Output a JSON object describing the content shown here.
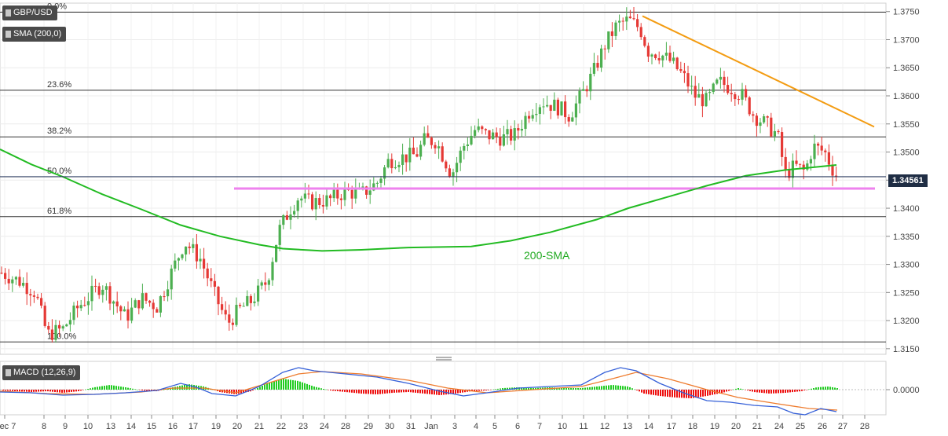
{
  "symbol": "GBP/USD",
  "indicator_label": "SMA (200,0)",
  "macd_label": "MACD (12,26,9)",
  "last_price": "1.34561",
  "sma_annotation": "200-SMA",
  "colors": {
    "up": "#4caf50",
    "down": "#e53935",
    "sma": "#22bb22",
    "trendline": "#f39c12",
    "support": "#ee82ee",
    "macd": "#3560d8",
    "signal": "#ee7b2d",
    "price_tag_bg": "#1f2d44"
  },
  "chart_data": {
    "type": "candlestick",
    "y_range": [
      1.314,
      1.3765
    ],
    "y_ticks": [
      "1.3750",
      "1.3700",
      "1.3650",
      "1.3600",
      "1.3550",
      "1.3500",
      "1.3450",
      "1.3400",
      "1.3350",
      "1.3300",
      "1.3250",
      "1.3200",
      "1.3150"
    ],
    "x_tick_labels": [
      "Dec 7",
      "8",
      "9",
      "10",
      "13",
      "14",
      "15",
      "16",
      "17",
      "19",
      "20",
      "21",
      "22",
      "23",
      "24",
      "28",
      "29",
      "30",
      "31",
      "Jan",
      "3",
      "4",
      "5",
      "6",
      "7",
      "10",
      "11",
      "12",
      "13",
      "14",
      "17",
      "18",
      "19",
      "20",
      "21",
      "24",
      "25",
      "26",
      "27",
      "28"
    ],
    "fibonacci": [
      {
        "label": "0.0%",
        "value": 1.3749
      },
      {
        "label": "23.6%",
        "value": 1.361
      },
      {
        "label": "38.2%",
        "value": 1.3527
      },
      {
        "label": "50.0%",
        "value": 1.3456
      },
      {
        "label": "61.8%",
        "value": 1.3385
      },
      {
        "label": "100.0%",
        "value": 1.3162
      }
    ],
    "support_level": 1.3435,
    "trendline": {
      "from": {
        "date": "Jan 13",
        "value": 1.3742
      },
      "to": {
        "date": "Jan 27",
        "value": 1.3545
      }
    },
    "sma200": [
      [
        0,
        1.3505
      ],
      [
        40,
        1.3478
      ],
      [
        80,
        1.3456
      ],
      [
        130,
        1.3425
      ],
      [
        180,
        1.3398
      ],
      [
        230,
        1.337
      ],
      [
        280,
        1.335
      ],
      [
        330,
        1.3335
      ],
      [
        360,
        1.3328
      ],
      [
        410,
        1.3324
      ],
      [
        460,
        1.3326
      ],
      [
        520,
        1.333
      ],
      [
        600,
        1.3332
      ],
      [
        650,
        1.3342
      ],
      [
        700,
        1.3357
      ],
      [
        760,
        1.338
      ],
      [
        800,
        1.34
      ],
      [
        850,
        1.342
      ],
      [
        900,
        1.344
      ],
      [
        950,
        1.3458
      ],
      [
        1000,
        1.3468
      ],
      [
        1065,
        1.3477
      ]
    ],
    "candles_anchor": [
      [
        2,
        1.3285
      ],
      [
        25,
        1.327
      ],
      [
        45,
        1.325
      ],
      [
        60,
        1.3175
      ],
      [
        80,
        1.3185
      ],
      [
        100,
        1.3225
      ],
      [
        130,
        1.3265
      ],
      [
        160,
        1.3205
      ],
      [
        180,
        1.324
      ],
      [
        200,
        1.3225
      ],
      [
        215,
        1.3275
      ],
      [
        235,
        1.334
      ],
      [
        255,
        1.331
      ],
      [
        275,
        1.324
      ],
      [
        290,
        1.3195
      ],
      [
        305,
        1.322
      ],
      [
        320,
        1.3235
      ],
      [
        340,
        1.327
      ],
      [
        355,
        1.336
      ],
      [
        370,
        1.34
      ],
      [
        380,
        1.342
      ],
      [
        395,
        1.341
      ],
      [
        420,
        1.3415
      ],
      [
        440,
        1.343
      ],
      [
        460,
        1.3425
      ],
      [
        480,
        1.3445
      ],
      [
        495,
        1.3485
      ],
      [
        510,
        1.349
      ],
      [
        530,
        1.3495
      ],
      [
        540,
        1.352
      ],
      [
        555,
        1.352
      ],
      [
        575,
        1.346
      ],
      [
        590,
        1.351
      ],
      [
        605,
        1.354
      ],
      [
        620,
        1.353
      ],
      [
        640,
        1.3525
      ],
      [
        655,
        1.353
      ],
      [
        675,
        1.3575
      ],
      [
        690,
        1.359
      ],
      [
        710,
        1.358
      ],
      [
        725,
        1.3565
      ],
      [
        740,
        1.36
      ],
      [
        755,
        1.364
      ],
      [
        770,
        1.369
      ],
      [
        785,
        1.3725
      ],
      [
        800,
        1.3735
      ],
      [
        815,
        1.372
      ],
      [
        825,
        1.368
      ],
      [
        840,
        1.3675
      ],
      [
        855,
        1.366
      ],
      [
        870,
        1.3635
      ],
      [
        885,
        1.36
      ],
      [
        900,
        1.359
      ],
      [
        915,
        1.3625
      ],
      [
        930,
        1.3615
      ],
      [
        945,
        1.36
      ],
      [
        960,
        1.3565
      ],
      [
        975,
        1.355
      ],
      [
        990,
        1.353
      ],
      [
        1000,
        1.346
      ],
      [
        1012,
        1.3475
      ],
      [
        1025,
        1.3465
      ],
      [
        1035,
        1.351
      ],
      [
        1050,
        1.35
      ],
      [
        1060,
        1.347
      ],
      [
        1066,
        1.3456
      ]
    ],
    "macd": {
      "zero_label": "0.0000",
      "macd": [
        [
          0,
          -3
        ],
        [
          40,
          -4
        ],
        [
          80,
          -7
        ],
        [
          120,
          -6
        ],
        [
          160,
          -4
        ],
        [
          200,
          -1
        ],
        [
          230,
          8
        ],
        [
          250,
          3
        ],
        [
          270,
          -5
        ],
        [
          300,
          -8
        ],
        [
          330,
          4
        ],
        [
          360,
          22
        ],
        [
          380,
          28
        ],
        [
          400,
          24
        ],
        [
          440,
          20
        ],
        [
          480,
          16
        ],
        [
          520,
          8
        ],
        [
          560,
          -2
        ],
        [
          590,
          -8
        ],
        [
          620,
          -4
        ],
        [
          660,
          2
        ],
        [
          700,
          4
        ],
        [
          740,
          6
        ],
        [
          770,
          22
        ],
        [
          790,
          28
        ],
        [
          810,
          24
        ],
        [
          840,
          8
        ],
        [
          870,
          -4
        ],
        [
          900,
          -14
        ],
        [
          930,
          -16
        ],
        [
          960,
          -20
        ],
        [
          990,
          -22
        ],
        [
          1010,
          -30
        ],
        [
          1025,
          -32
        ],
        [
          1045,
          -24
        ],
        [
          1065,
          -28
        ]
      ],
      "signal": [
        [
          0,
          -2
        ],
        [
          60,
          -5
        ],
        [
          120,
          -6
        ],
        [
          180,
          -3
        ],
        [
          220,
          2
        ],
        [
          260,
          2
        ],
        [
          300,
          -4
        ],
        [
          340,
          8
        ],
        [
          380,
          20
        ],
        [
          410,
          23
        ],
        [
          460,
          20
        ],
        [
          520,
          12
        ],
        [
          570,
          2
        ],
        [
          620,
          -4
        ],
        [
          680,
          0
        ],
        [
          740,
          4
        ],
        [
          780,
          14
        ],
        [
          810,
          22
        ],
        [
          850,
          14
        ],
        [
          900,
          0
        ],
        [
          940,
          -10
        ],
        [
          990,
          -18
        ],
        [
          1030,
          -24
        ],
        [
          1066,
          -26
        ]
      ],
      "hist": [
        [
          0,
          -1
        ],
        [
          20,
          -2
        ],
        [
          40,
          -3
        ],
        [
          60,
          -2
        ],
        [
          80,
          -4
        ],
        [
          100,
          -2
        ],
        [
          120,
          3
        ],
        [
          140,
          6
        ],
        [
          160,
          3
        ],
        [
          180,
          -1
        ],
        [
          200,
          -2
        ],
        [
          220,
          3
        ],
        [
          240,
          7
        ],
        [
          260,
          4
        ],
        [
          280,
          -3
        ],
        [
          300,
          -6
        ],
        [
          320,
          -2
        ],
        [
          340,
          8
        ],
        [
          360,
          14
        ],
        [
          380,
          11
        ],
        [
          400,
          4
        ],
        [
          420,
          -1
        ],
        [
          440,
          -3
        ],
        [
          460,
          -5
        ],
        [
          480,
          -6
        ],
        [
          500,
          -4
        ],
        [
          520,
          -3
        ],
        [
          540,
          -5
        ],
        [
          560,
          -7
        ],
        [
          580,
          -5
        ],
        [
          600,
          -2
        ],
        [
          620,
          -1
        ],
        [
          640,
          2
        ],
        [
          660,
          3
        ],
        [
          680,
          2
        ],
        [
          700,
          3
        ],
        [
          720,
          2
        ],
        [
          740,
          2
        ],
        [
          760,
          4
        ],
        [
          780,
          6
        ],
        [
          800,
          4
        ],
        [
          820,
          -5
        ],
        [
          840,
          -8
        ],
        [
          860,
          -10
        ],
        [
          880,
          -11
        ],
        [
          900,
          -8
        ],
        [
          920,
          -4
        ],
        [
          940,
          2
        ],
        [
          960,
          -3
        ],
        [
          980,
          -5
        ],
        [
          1000,
          -4
        ],
        [
          1020,
          -2
        ],
        [
          1040,
          3
        ],
        [
          1055,
          4
        ],
        [
          1066,
          2
        ]
      ]
    }
  }
}
